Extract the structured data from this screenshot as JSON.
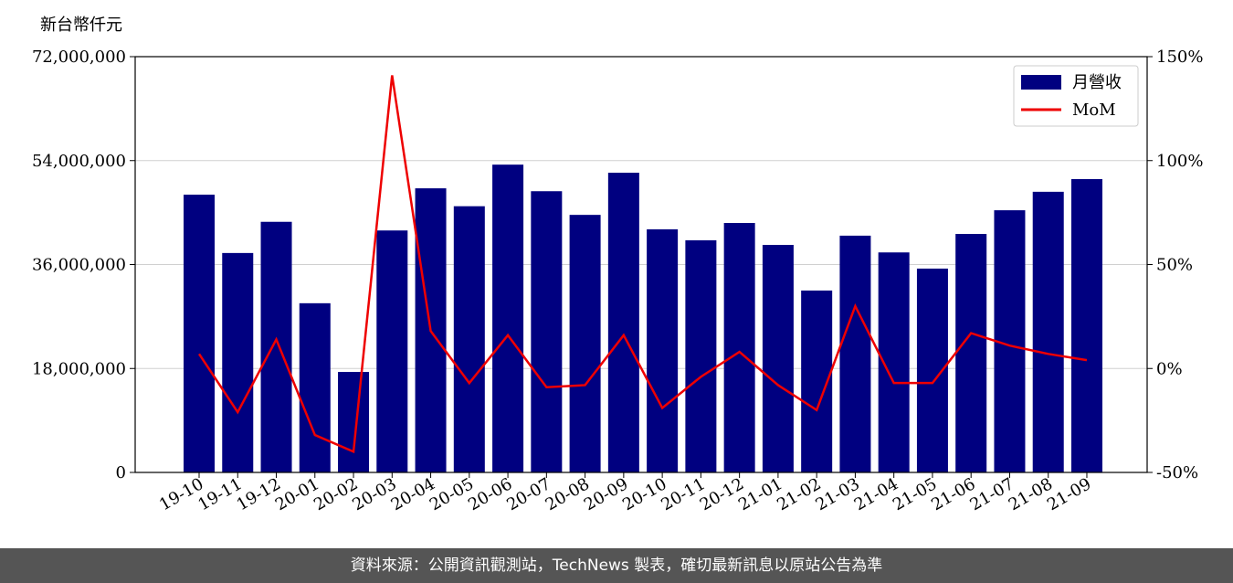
{
  "chart_data": {
    "type": "bar",
    "y_axis_label": "新台幣仟元",
    "source": "資料來源：公開資訊觀測站，TechNews 製表，確切最新訊息以原站公告為準",
    "categories": [
      "19-10",
      "19-11",
      "19-12",
      "20-01",
      "20-02",
      "20-03",
      "20-04",
      "20-05",
      "20-06",
      "20-07",
      "20-08",
      "20-09",
      "20-10",
      "20-11",
      "20-12",
      "21-01",
      "21-02",
      "21-03",
      "21-04",
      "21-05",
      "21-06",
      "21-07",
      "21-08",
      "21-09"
    ],
    "series": [
      {
        "name": "月營收",
        "type": "bar",
        "color": "#000080",
        "values": [
          48100000,
          38000000,
          43400000,
          29300000,
          17400000,
          41900000,
          49200000,
          46100000,
          53300000,
          48700000,
          44600000,
          51900000,
          42100000,
          40200000,
          43200000,
          39400000,
          31500000,
          41000000,
          38100000,
          35300000,
          41300000,
          45400000,
          48600000,
          50800000
        ]
      },
      {
        "name": "MoM",
        "type": "line",
        "axis": "y2",
        "color": "#ee0000",
        "values": [
          7,
          -21,
          14,
          -32,
          -40,
          141,
          18,
          -7,
          16,
          -9,
          -8,
          16,
          -19,
          -4,
          8,
          -8,
          -20,
          30,
          -7,
          -7,
          17,
          11,
          7,
          4
        ]
      }
    ],
    "ylim": [
      0,
      72000000
    ],
    "yticks": [
      0,
      {
        "value": 18000000,
        "label": "18,000,000"
      },
      {
        "value": 36000000,
        "label": "36,000,000"
      },
      {
        "value": 54000000,
        "label": "54,000,000"
      },
      {
        "value": 72000000,
        "label": "72,000,000"
      }
    ],
    "y2lim": [
      -50,
      150
    ],
    "y2ticks": [
      {
        "value": -50,
        "label": "-50%"
      },
      {
        "value": 0,
        "label": "0%"
      },
      {
        "value": 50,
        "label": "50%"
      },
      {
        "value": 100,
        "label": "100%"
      },
      {
        "value": 150,
        "label": "150%"
      }
    ],
    "grid": true,
    "legend": "upper-right"
  }
}
